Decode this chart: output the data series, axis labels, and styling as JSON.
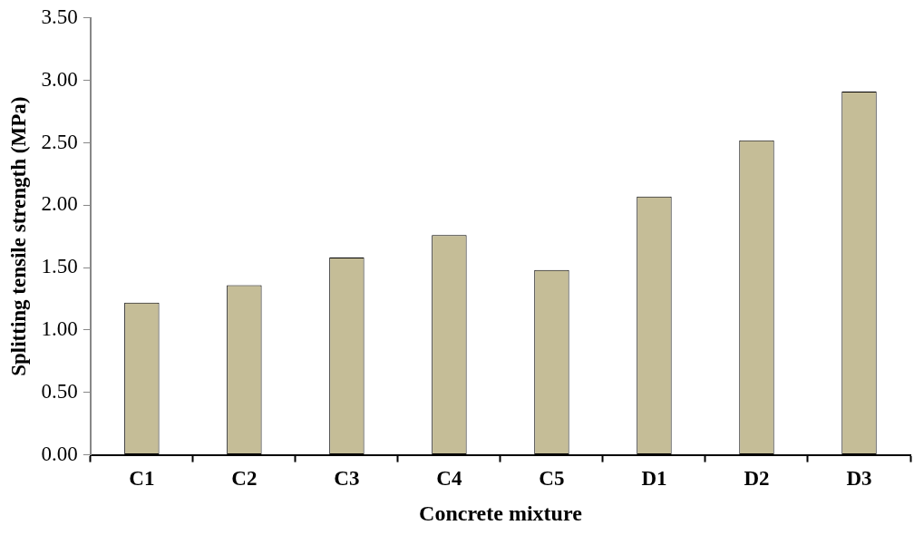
{
  "chart_data": {
    "type": "bar",
    "xlabel": "Concrete mixture",
    "ylabel": "Splitting tensile strength (MPa)",
    "categories": [
      "C1",
      "C2",
      "C3",
      "C4",
      "C5",
      "D1",
      "D2",
      "D3"
    ],
    "values": [
      1.22,
      1.36,
      1.58,
      1.76,
      1.48,
      2.07,
      2.52,
      2.91
    ],
    "color": "#c5bd97",
    "ylim": [
      0,
      3.5
    ],
    "yticks": [
      {
        "value": 0,
        "label": "0.00"
      },
      {
        "value": 0.5,
        "label": "0.50"
      },
      {
        "value": 1,
        "label": "1.00"
      },
      {
        "value": 1.5,
        "label": "1.50"
      },
      {
        "value": 2,
        "label": "2.00"
      },
      {
        "value": 2.5,
        "label": "2.50"
      },
      {
        "value": 3,
        "label": "3.00"
      },
      {
        "value": 3.5,
        "label": "3.50"
      }
    ],
    "grid": false,
    "legend": false
  }
}
